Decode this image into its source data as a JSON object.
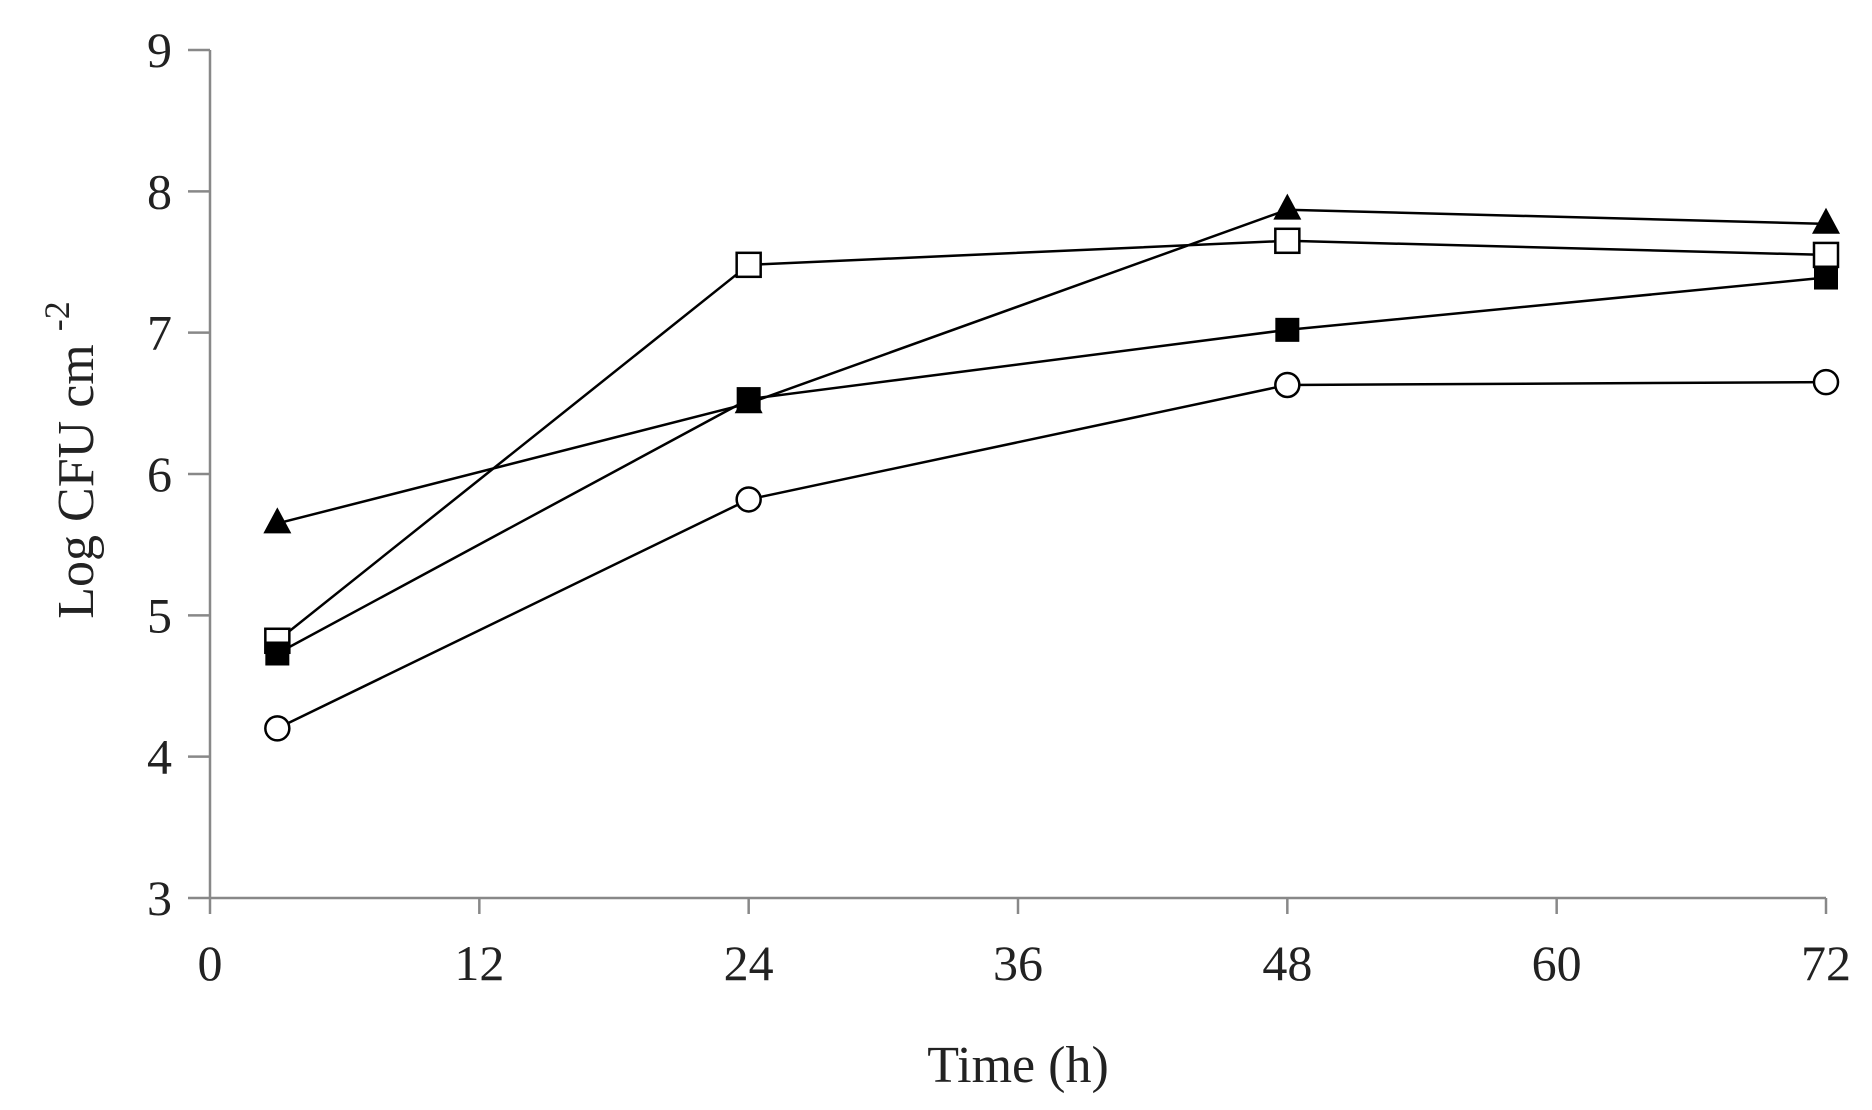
{
  "chart_data": {
    "type": "line",
    "title": "",
    "xlabel": "Time (h)",
    "ylabel_main": "Log CFU cm",
    "ylabel_sup": "-2",
    "xlim": [
      0,
      72
    ],
    "ylim": [
      3,
      9
    ],
    "xticks": [
      0,
      12,
      24,
      36,
      48,
      60,
      72
    ],
    "yticks": [
      3,
      4,
      5,
      6,
      7,
      8,
      9
    ],
    "x": [
      3,
      24,
      48,
      72
    ],
    "series": [
      {
        "name": "filled triangle",
        "marker": "triangle",
        "values": [
          5.65,
          6.5,
          7.87,
          7.77
        ]
      },
      {
        "name": "open square",
        "marker": "square-open",
        "values": [
          4.82,
          7.48,
          7.65,
          7.55
        ]
      },
      {
        "name": "filled square",
        "marker": "square",
        "values": [
          4.73,
          6.53,
          7.02,
          7.39
        ]
      },
      {
        "name": "open circle",
        "marker": "circle-open",
        "values": [
          4.2,
          5.82,
          6.63,
          6.65
        ]
      }
    ],
    "colors": {
      "line": "#000000",
      "axis": "#888888"
    }
  }
}
